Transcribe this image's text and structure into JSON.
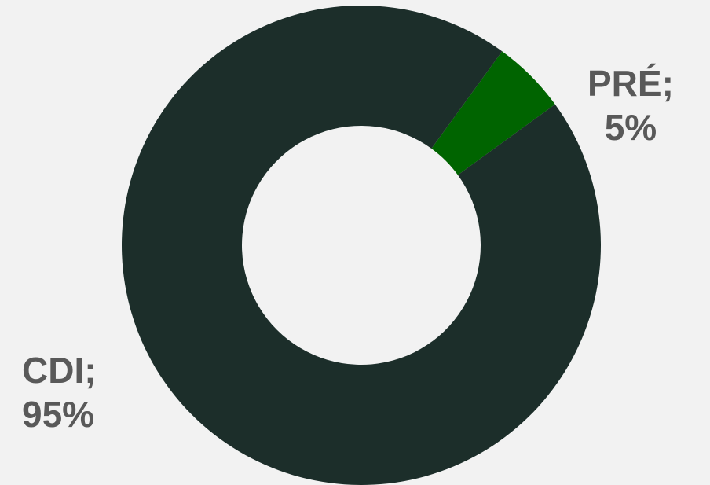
{
  "chart_data": {
    "type": "pie",
    "variant": "donut",
    "legend": "none",
    "slices": [
      {
        "label": "CDI",
        "value": 95,
        "value_label": "95%",
        "color": "#1c2e2a"
      },
      {
        "label": "PRÉ",
        "value": 5,
        "value_label": "5%",
        "color": "#006400"
      }
    ]
  },
  "labels": {
    "pre_name": "PRÉ;",
    "pre_value": "5%",
    "cdi_name": "CDI;",
    "cdi_value": "95%"
  },
  "colors": {
    "background": "#f2f2f2",
    "label_text": "#595959"
  }
}
